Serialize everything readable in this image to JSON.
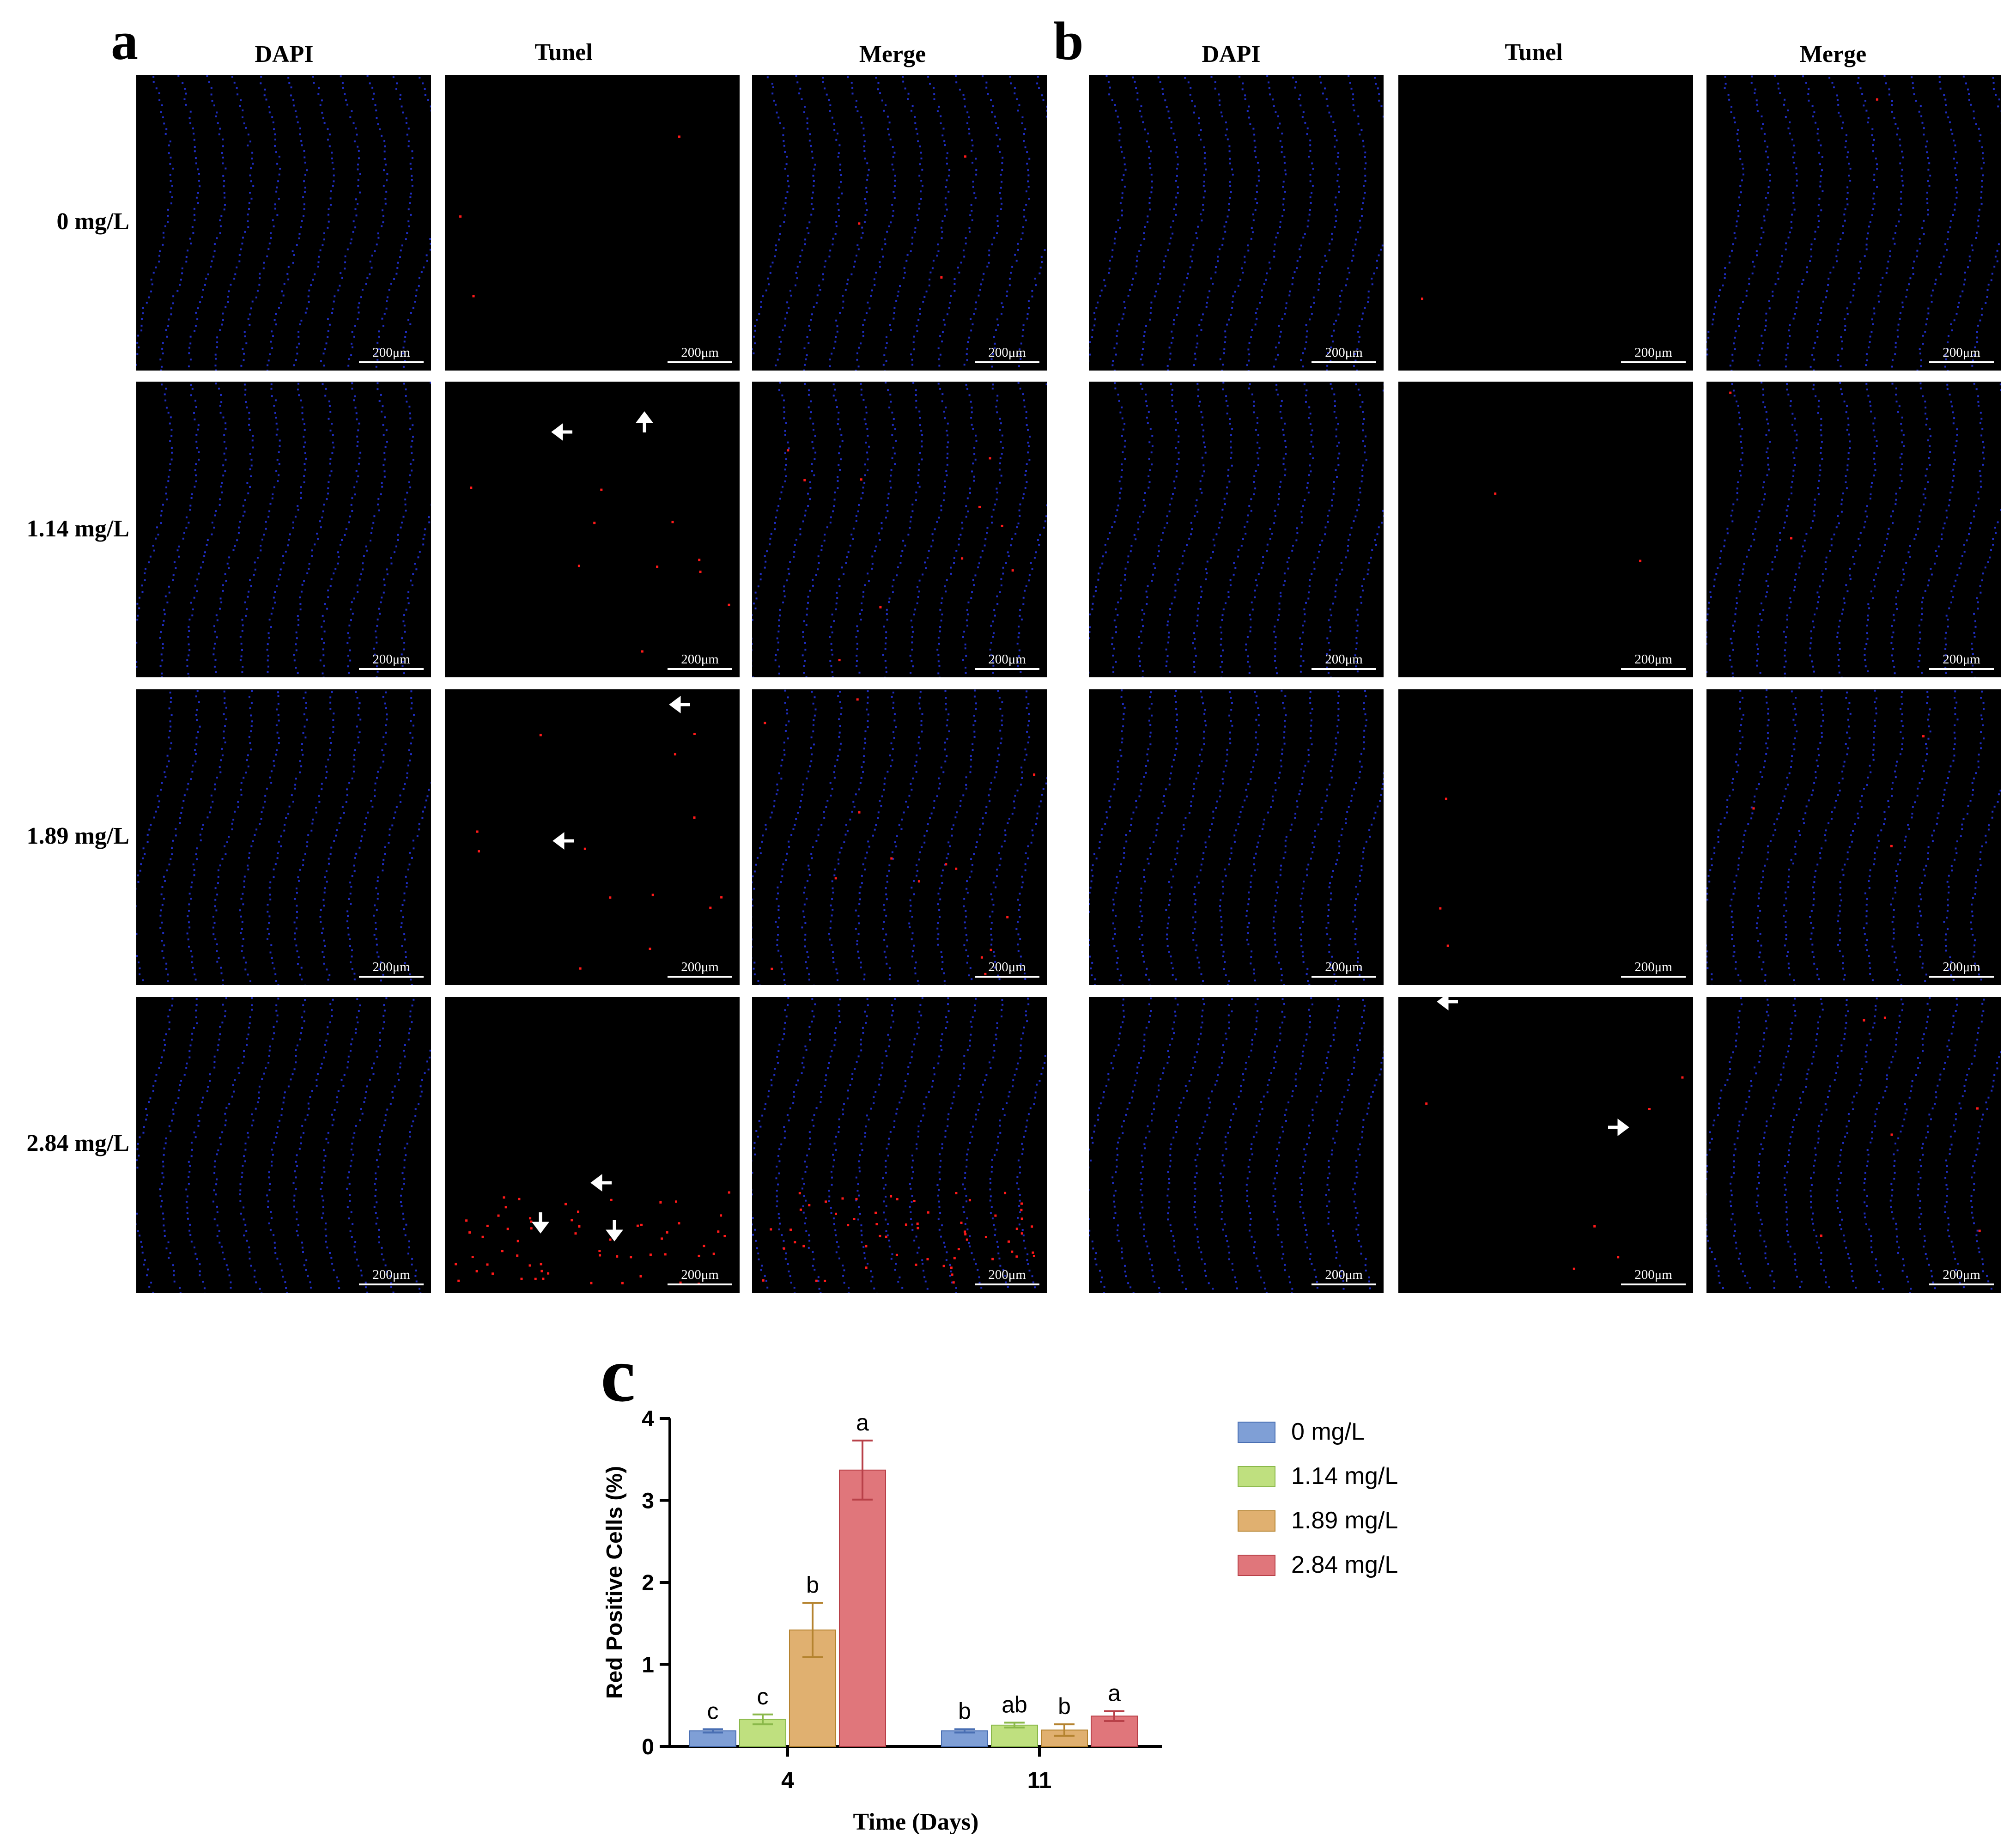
{
  "panels": {
    "a": {
      "letter": "a",
      "columns": [
        "DAPI",
        "Tunel",
        "Merge"
      ]
    },
    "b": {
      "letter": "b",
      "columns": [
        "DAPI",
        "Tunel",
        "Merge"
      ]
    },
    "c": {
      "letter": "c"
    }
  },
  "rows": [
    "0 mg/L",
    "1.14 mg/L",
    "1.89 mg/L",
    "2.84 mg/L"
  ],
  "scale_bar": "200μm",
  "colors": {
    "dapi": "#2a3cff",
    "tunel": "#ff1a1a",
    "series": [
      "#7f9fd6",
      "#bfe07f",
      "#e0b070",
      "#e0767b"
    ],
    "series_stroke": [
      "#4a6fb3",
      "#8ab84a",
      "#b5832f",
      "#b84048"
    ]
  },
  "icons": {
    "arrow": "white-arrow-icon"
  },
  "chart_data": {
    "type": "bar",
    "xlabel": "Time (Days)",
    "ylabel": "Red Positive Cells (%)",
    "categories": [
      "4",
      "11"
    ],
    "ylim": [
      0,
      4
    ],
    "yticks": [
      "0",
      "1",
      "2",
      "3",
      "4"
    ],
    "legend_position": "right",
    "series": [
      {
        "name": "0 mg/L",
        "values": [
          0.19,
          0.19
        ],
        "errors": [
          0.02,
          0.02
        ],
        "labels": [
          "c",
          "b"
        ]
      },
      {
        "name": "1.14 mg/L",
        "values": [
          0.33,
          0.26
        ],
        "errors": [
          0.06,
          0.03
        ],
        "labels": [
          "c",
          "ab"
        ]
      },
      {
        "name": "1.89 mg/L",
        "values": [
          1.42,
          0.2
        ],
        "errors": [
          0.33,
          0.07
        ],
        "labels": [
          "b",
          "b"
        ]
      },
      {
        "name": "2.84 mg/L",
        "values": [
          3.37,
          0.37
        ],
        "errors": [
          0.36,
          0.06
        ],
        "labels": [
          "a",
          "a"
        ]
      }
    ]
  }
}
